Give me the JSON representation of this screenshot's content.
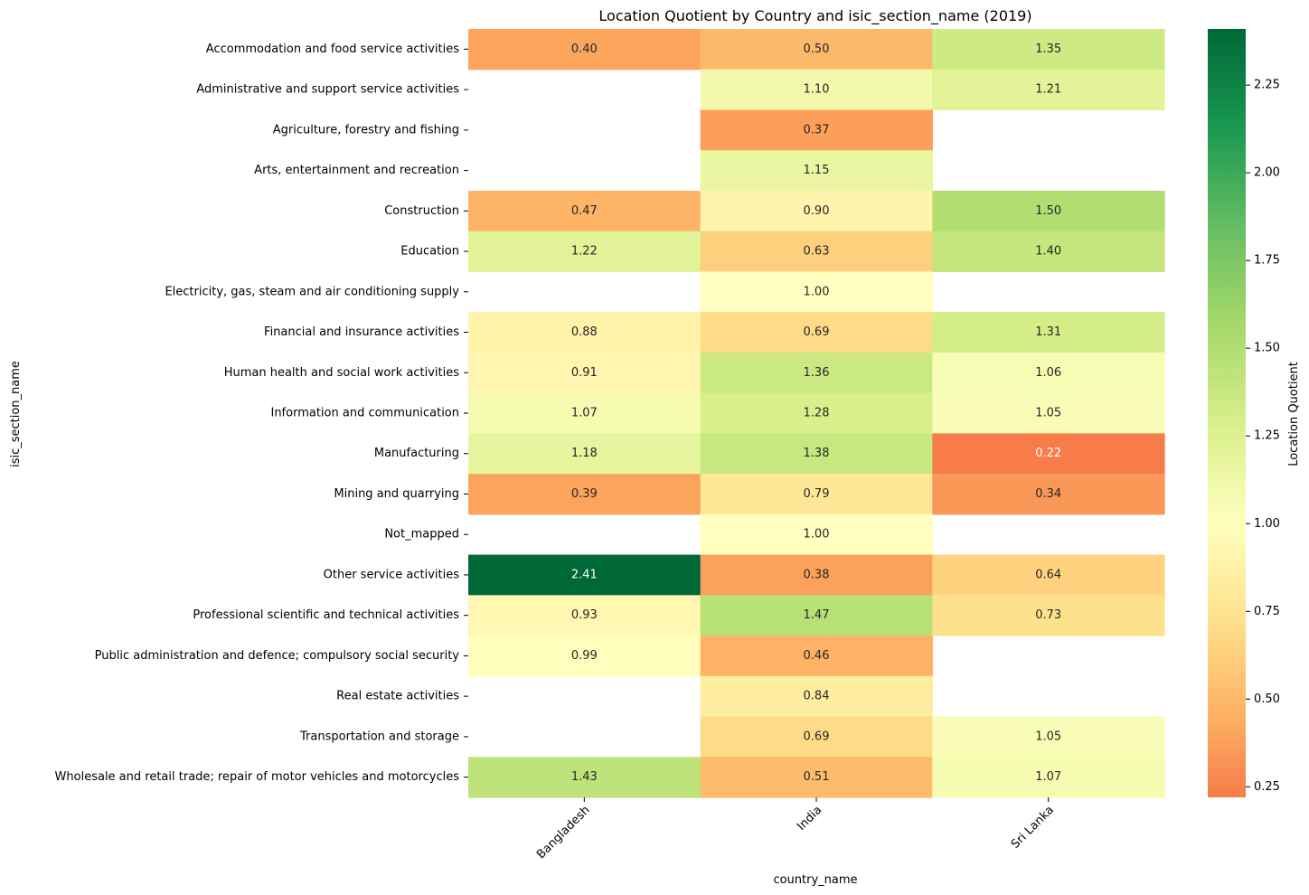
{
  "chart_data": {
    "type": "heatmap",
    "title": "Location Quotient by Country and isic_section_name (2019)",
    "xlabel": "country_name",
    "ylabel": "isic_section_name",
    "colorbar_label": "Location Quotient",
    "colormap": "RdYlGn",
    "value_range": [
      0.22,
      2.41
    ],
    "center": 1.0,
    "colorbar_ticks": [
      0.25,
      0.5,
      0.75,
      1.0,
      1.25,
      1.5,
      1.75,
      2.0,
      2.25
    ],
    "colorbar_tick_labels": [
      "0.25",
      "0.50",
      "0.75",
      "1.00",
      "1.25",
      "1.50",
      "1.75",
      "2.00",
      "2.25"
    ],
    "columns": [
      "Bangladesh",
      "India",
      "Sri Lanka"
    ],
    "rows": [
      "Accommodation and food service activities",
      "Administrative and support service activities",
      "Agriculture, forestry and fishing ",
      "Arts, entertainment and recreation ",
      "Construction",
      "Education",
      "Electricity, gas, steam and air conditioning supply",
      "Financial and insurance activities",
      "Human health and social work activities",
      "Information and communication",
      "Manufacturing",
      "Mining and quarrying",
      "Not_mapped",
      "Other service activities",
      "Professional scientific and technical activities",
      "Public administration and defence; compulsory social security",
      "Real estate activities",
      "Transportation and storage",
      "Wholesale and retail trade; repair of motor vehicles and motorcycles"
    ],
    "values": [
      [
        0.4,
        0.5,
        1.35
      ],
      [
        null,
        1.1,
        1.21
      ],
      [
        null,
        0.37,
        null
      ],
      [
        null,
        1.15,
        null
      ],
      [
        0.47,
        0.9,
        1.5
      ],
      [
        1.22,
        0.63,
        1.4
      ],
      [
        null,
        1.0,
        null
      ],
      [
        0.88,
        0.69,
        1.31
      ],
      [
        0.91,
        1.36,
        1.06
      ],
      [
        1.07,
        1.28,
        1.05
      ],
      [
        1.18,
        1.38,
        0.22
      ],
      [
        0.39,
        0.79,
        0.34
      ],
      [
        null,
        1.0,
        null
      ],
      [
        2.41,
        0.38,
        0.64
      ],
      [
        0.93,
        1.47,
        0.73
      ],
      [
        0.99,
        0.46,
        null
      ],
      [
        null,
        0.84,
        null
      ],
      [
        null,
        0.69,
        1.05
      ],
      [
        1.43,
        0.51,
        1.07
      ]
    ]
  }
}
